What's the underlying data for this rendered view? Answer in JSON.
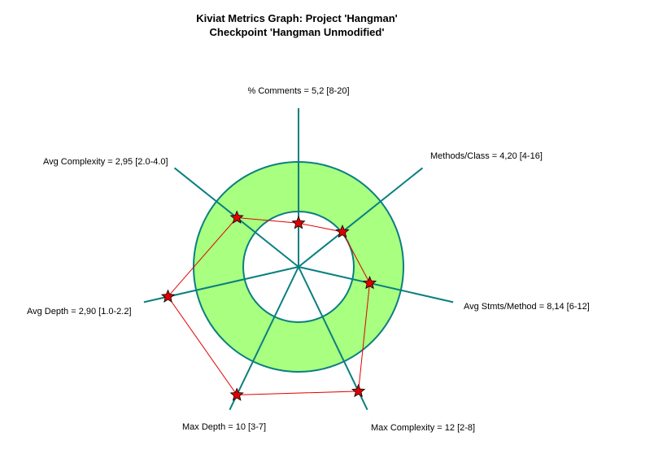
{
  "chart_data": {
    "type": "radar",
    "title": "Kiviat Metrics Graph: Project 'Hangman'",
    "subtitle": "Checkpoint 'Hangman Unmodified'",
    "colors": {
      "band_fill": "#a8ff80",
      "axis": "#0b7f80",
      "polygon": "#e00000",
      "marker": "#e00000"
    },
    "axes": [
      {
        "label": "% Comments = 5,2 [8-20]",
        "value": 5.2,
        "min": 8,
        "max": 20
      },
      {
        "label": "Methods/Class = 4,20 [4-16]",
        "value": 4.2,
        "min": 4,
        "max": 16
      },
      {
        "label": "Avg Stmts/Method = 8,14 [6-12]",
        "value": 8.14,
        "min": 6,
        "max": 12
      },
      {
        "label": "Max Complexity = 12 [2-8]",
        "value": 12,
        "min": 2,
        "max": 8
      },
      {
        "label": "Max Depth = 10 [3-7]",
        "value": 10,
        "min": 3,
        "max": 7
      },
      {
        "label": "Avg Depth = 2,90 [1.0-2.2]",
        "value": 2.9,
        "min": 1.0,
        "max": 2.2
      },
      {
        "label": "Avg Complexity = 2,95 [2.0-4.0]",
        "value": 2.95,
        "min": 2.0,
        "max": 4.0
      }
    ]
  }
}
